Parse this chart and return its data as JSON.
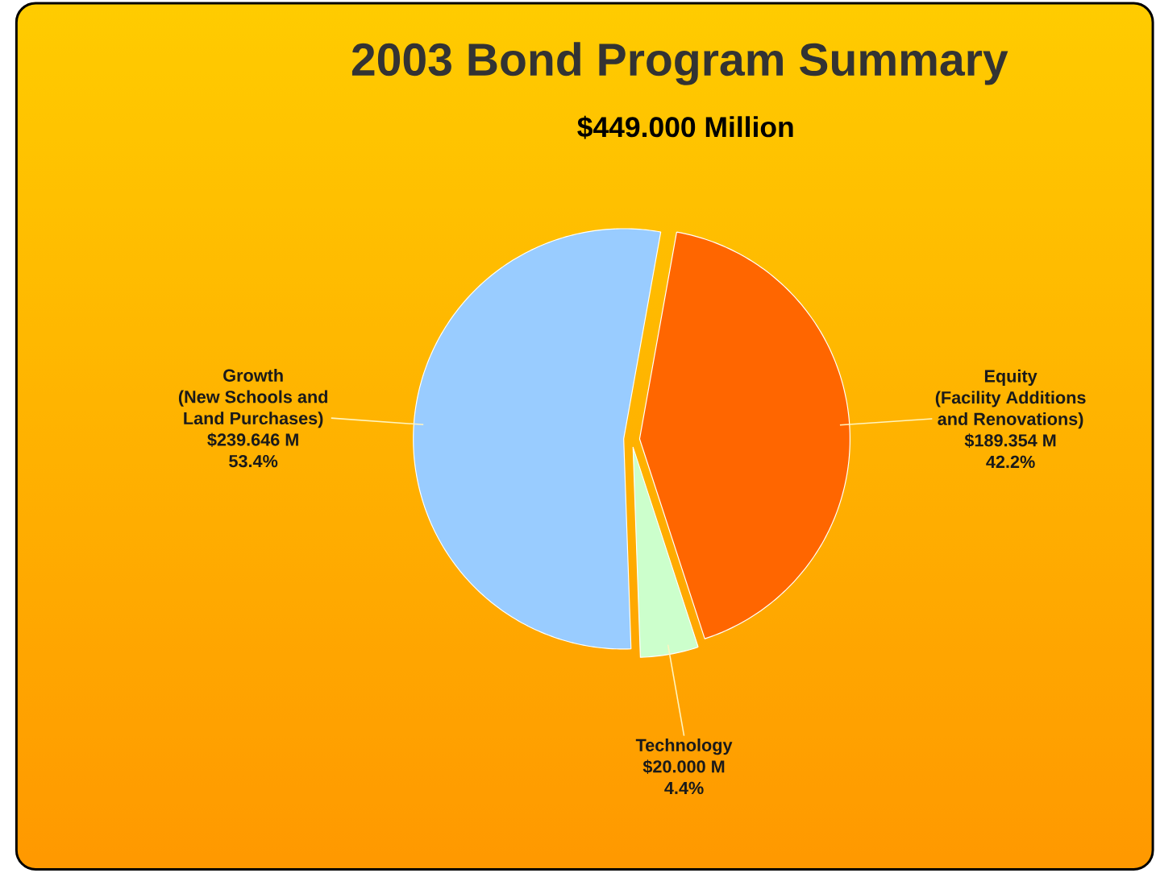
{
  "chart_data": {
    "type": "pie",
    "title": "2003 Bond Program Summary",
    "subtitle": "$449.000 Million",
    "categories": [
      "Growth\n(New Schools and\nLand Purchases)",
      "Equity\n(Facility Additions\nand Renovations)",
      "Technology"
    ],
    "values": [
      239.646,
      189.354,
      20.0
    ],
    "value_labels": [
      "$239.646 M\n53.4%",
      "$189.354 M\n42.2%",
      "$20.000 M\n4.4%"
    ],
    "colors": [
      "#99ccff",
      "#ff6600",
      "#ccffcc"
    ],
    "legend": false
  }
}
